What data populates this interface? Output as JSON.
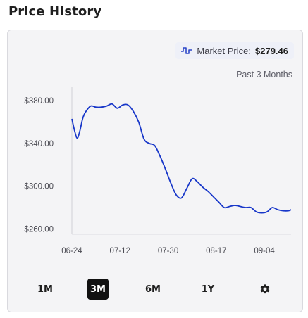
{
  "header": {
    "title": "Price History"
  },
  "market": {
    "label": "Market Price:",
    "value": "$279.46",
    "icon": "chart-pulse-icon"
  },
  "range_caption": "Past 3 Months",
  "buttons": [
    {
      "label": "1M",
      "active": false
    },
    {
      "label": "3M",
      "active": true
    },
    {
      "label": "6M",
      "active": false
    },
    {
      "label": "1Y",
      "active": false
    }
  ],
  "settings_icon": "gear-icon",
  "colors": {
    "line": "#1837c9",
    "active_button": "#111111",
    "card_bg": "#f4f4f6"
  },
  "chart_data": {
    "type": "line",
    "title": "",
    "xlabel": "",
    "ylabel": "",
    "x_ticks": [
      "06-24",
      "07-12",
      "07-30",
      "08-17",
      "09-04"
    ],
    "y_ticks": [
      "$380.00",
      "$340.00",
      "$300.00",
      "$260.00"
    ],
    "y_tick_values": [
      380,
      340,
      300,
      260
    ],
    "ylim": [
      255,
      390
    ],
    "x_range": [
      "06-24",
      "09-14"
    ],
    "grid": false,
    "series": [
      {
        "x": [
          "06-24",
          "06-25",
          "06-26",
          "06-27",
          "06-28",
          "06-29",
          "07-01",
          "07-03",
          "07-05",
          "07-07",
          "07-09",
          "07-11",
          "07-13",
          "07-15",
          "07-17",
          "07-19",
          "07-21",
          "07-23",
          "07-25",
          "07-27",
          "07-29",
          "07-31",
          "08-02",
          "08-04",
          "08-06",
          "08-08",
          "08-10",
          "08-12",
          "08-14",
          "08-16",
          "08-18",
          "08-20",
          "08-22",
          "08-24",
          "08-26",
          "08-28",
          "08-30",
          "09-01",
          "09-03",
          "09-05",
          "09-07",
          "09-09",
          "09-11",
          "09-13",
          "09-14"
        ],
        "values": [
          363,
          352,
          345,
          352,
          363,
          369,
          375,
          374,
          374,
          375,
          377,
          373,
          376,
          376,
          370,
          360,
          344,
          340,
          338,
          328,
          316,
          303,
          292,
          289,
          298,
          307,
          304,
          299,
          295,
          290,
          285,
          280,
          281,
          282,
          281,
          280,
          280,
          276,
          275,
          276,
          280,
          278,
          277,
          277,
          278
        ]
      }
    ]
  }
}
